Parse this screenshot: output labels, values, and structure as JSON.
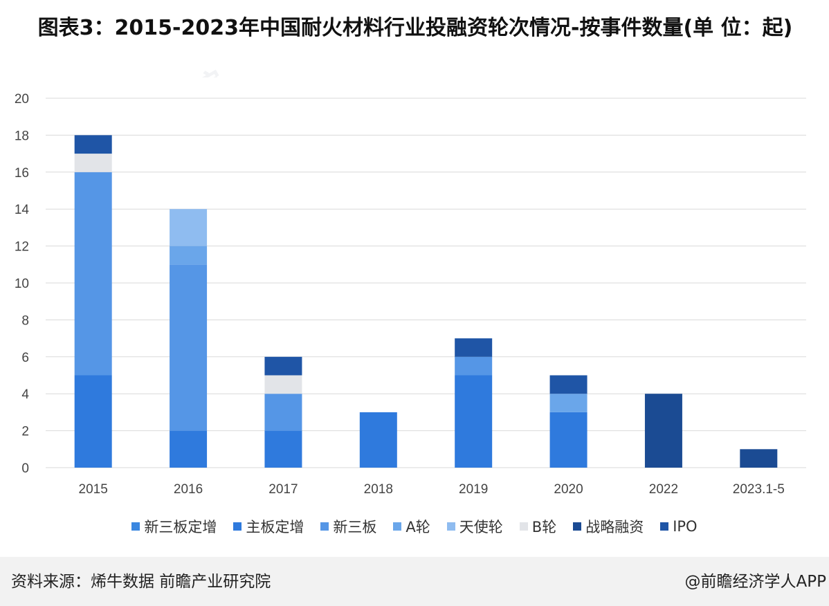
{
  "title": "图表3：2015-2023年中国耐火材料行业投融资轮次情况-按事件数量(单 位：起)",
  "footer": {
    "source": "资料来源：烯牛数据 前瞻产业研究院",
    "brand": "@前瞻经济学人APP"
  },
  "watermark": "前瞻产业研究院",
  "chart_data": {
    "type": "bar",
    "stacked": true,
    "categories": [
      "2015",
      "2016",
      "2017",
      "2018",
      "2019",
      "2020",
      "2022",
      "2023.1-5"
    ],
    "series": [
      {
        "name": "新三板定增",
        "color": "#3A87E0",
        "values": [
          0,
          0,
          0,
          0,
          0,
          0,
          0,
          0
        ]
      },
      {
        "name": "主板定增",
        "color": "#2F7ADD",
        "values": [
          5,
          2,
          2,
          3,
          5,
          3,
          0,
          0
        ]
      },
      {
        "name": "新三板",
        "color": "#5596E6",
        "values": [
          11,
          9,
          2,
          0,
          1,
          0,
          0,
          0
        ]
      },
      {
        "name": "A轮",
        "color": "#6AA6EA",
        "values": [
          0,
          1,
          0,
          0,
          0,
          1,
          0,
          0
        ]
      },
      {
        "name": "天使轮",
        "color": "#8FBCF0",
        "values": [
          0,
          2,
          0,
          0,
          0,
          0,
          0,
          0
        ]
      },
      {
        "name": "B轮",
        "color": "#E2E4E8",
        "values": [
          1,
          0,
          1,
          0,
          0,
          0,
          0,
          0
        ]
      },
      {
        "name": "战略融资",
        "color": "#1B4B93",
        "values": [
          0,
          0,
          0,
          0,
          0,
          0,
          4,
          1
        ]
      },
      {
        "name": "IPO",
        "color": "#1F55A6",
        "values": [
          1,
          0,
          1,
          0,
          1,
          1,
          0,
          0
        ]
      }
    ],
    "ylim": [
      0,
      20
    ],
    "yticks": [
      "0",
      "2",
      "4",
      "6",
      "8",
      "10",
      "12",
      "14",
      "16",
      "18",
      "20"
    ],
    "grid": true,
    "legend_position": "bottom"
  }
}
